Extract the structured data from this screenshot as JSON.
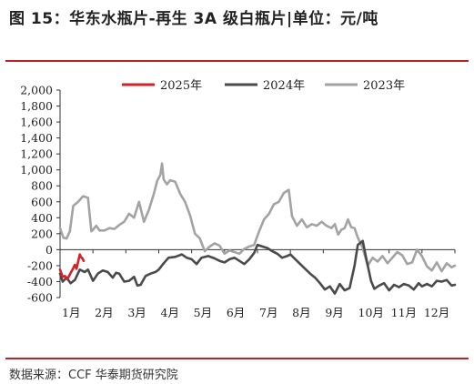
{
  "title": "图 15：华东水瓶片-再生 3A 级白瓶片|单位：元/吨",
  "source": "数据来源：CCF  华泰期货研究院",
  "colors": {
    "rule": "#b8232a",
    "s2025": "#d42128",
    "s2024": "#4a4a4a",
    "s2023": "#a3a3a3"
  },
  "chart_data": {
    "type": "line",
    "x_unit": "month",
    "xlim": [
      1,
      13
    ],
    "x_ticks": [
      1,
      2,
      3,
      4,
      5,
      6,
      7,
      8,
      9,
      10,
      11,
      12
    ],
    "x_tick_labels": [
      "1月",
      "2月",
      "3月",
      "4月",
      "5月",
      "6月",
      "7月",
      "8月",
      "9月",
      "10月",
      "11月",
      "12月"
    ],
    "ylim": [
      -600,
      2000
    ],
    "y_ticks": [
      -600,
      -400,
      -200,
      0,
      200,
      400,
      600,
      800,
      1000,
      1200,
      1400,
      1600,
      1800,
      2000
    ],
    "y_tick_labels": [
      "-600",
      "-400",
      "-200",
      "0",
      "200",
      "400",
      "600",
      "800",
      "1,000",
      "1,200",
      "1,400",
      "1,600",
      "1,800",
      "2,000"
    ],
    "legend_position": "top",
    "series": [
      {
        "name": "2025年",
        "color": "#d42128",
        "x": [
          1.0,
          1.08,
          1.15,
          1.22,
          1.3,
          1.38,
          1.45,
          1.5,
          1.55,
          1.6,
          1.63,
          1.68,
          1.72
        ],
        "y": [
          -250,
          -340,
          -330,
          -370,
          -310,
          -250,
          -190,
          -240,
          -150,
          -60,
          -90,
          -110,
          -140
        ]
      },
      {
        "name": "2024年",
        "color": "#4a4a4a",
        "x": [
          1.0,
          1.08,
          1.2,
          1.32,
          1.45,
          1.6,
          1.75,
          1.85,
          2.0,
          2.15,
          2.3,
          2.45,
          2.6,
          2.7,
          2.8,
          2.95,
          3.1,
          3.25,
          3.35,
          3.45,
          3.6,
          3.75,
          3.9,
          4.0,
          4.15,
          4.3,
          4.5,
          4.7,
          4.85,
          5.0,
          5.15,
          5.3,
          5.5,
          5.7,
          5.85,
          6.0,
          6.15,
          6.3,
          6.45,
          6.6,
          6.75,
          6.9,
          7.0,
          7.15,
          7.3,
          7.45,
          7.6,
          7.75,
          7.9,
          8.0,
          8.15,
          8.3,
          8.45,
          8.6,
          8.75,
          8.9,
          9.05,
          9.2,
          9.35,
          9.5,
          9.65,
          9.8,
          9.95,
          10.05,
          10.2,
          10.3,
          10.45,
          10.55,
          10.7,
          10.85,
          11.0,
          11.15,
          11.3,
          11.45,
          11.6,
          11.75,
          11.9,
          12.0,
          12.15,
          12.3,
          12.45,
          12.6,
          12.75,
          12.9,
          13.0
        ],
        "y": [
          -300,
          -400,
          -350,
          -420,
          -380,
          -250,
          -280,
          -250,
          -390,
          -300,
          -260,
          -280,
          -350,
          -290,
          -300,
          -400,
          -390,
          -340,
          -450,
          -440,
          -330,
          -300,
          -280,
          -250,
          -170,
          -100,
          -90,
          -60,
          -100,
          -120,
          -180,
          -100,
          -80,
          -110,
          -140,
          -160,
          -120,
          -100,
          -140,
          -180,
          -120,
          -40,
          60,
          40,
          20,
          -20,
          -50,
          -100,
          -80,
          -60,
          -120,
          -180,
          -240,
          -300,
          -350,
          -420,
          -500,
          -460,
          -550,
          -430,
          -510,
          -480,
          -200,
          60,
          110,
          -100,
          -390,
          -490,
          -450,
          -420,
          -510,
          -440,
          -470,
          -430,
          -450,
          -500,
          -420,
          -460,
          -430,
          -460,
          -390,
          -400,
          -380,
          -450,
          -440
        ]
      },
      {
        "name": "2023年",
        "color": "#a3a3a3",
        "x": [
          1.0,
          1.1,
          1.2,
          1.3,
          1.4,
          1.55,
          1.7,
          1.85,
          1.95,
          2.0,
          2.1,
          2.2,
          2.35,
          2.5,
          2.65,
          2.8,
          2.95,
          3.1,
          3.25,
          3.4,
          3.55,
          3.7,
          3.85,
          3.95,
          4.05,
          4.1,
          4.15,
          4.25,
          4.35,
          4.5,
          4.65,
          4.8,
          4.95,
          5.1,
          5.25,
          5.4,
          5.55,
          5.7,
          5.85,
          6.0,
          6.15,
          6.3,
          6.45,
          6.6,
          6.75,
          6.9,
          7.05,
          7.2,
          7.35,
          7.5,
          7.65,
          7.8,
          7.95,
          8.05,
          8.2,
          8.35,
          8.5,
          8.65,
          8.8,
          8.95,
          9.1,
          9.25,
          9.35,
          9.45,
          9.55,
          9.65,
          9.75,
          9.85,
          9.95,
          10.05,
          10.2,
          10.35,
          10.5,
          10.65,
          10.8,
          10.95,
          11.1,
          11.25,
          11.4,
          11.55,
          11.7,
          11.85,
          12.0,
          12.15,
          12.3,
          12.45,
          12.6,
          12.75,
          12.9,
          13.0
        ],
        "y": [
          270,
          150,
          140,
          230,
          550,
          600,
          670,
          650,
          230,
          250,
          300,
          240,
          240,
          270,
          260,
          310,
          350,
          450,
          400,
          600,
          350,
          500,
          700,
          860,
          940,
          1080,
          880,
          820,
          870,
          850,
          700,
          600,
          430,
          200,
          140,
          -20,
          40,
          80,
          50,
          -50,
          -10,
          -30,
          -50,
          10,
          40,
          60,
          230,
          380,
          450,
          570,
          600,
          710,
          750,
          420,
          300,
          380,
          280,
          320,
          300,
          350,
          300,
          270,
          320,
          190,
          250,
          270,
          380,
          280,
          270,
          150,
          20,
          -200,
          -100,
          -150,
          -80,
          -170,
          -100,
          -30,
          -70,
          -180,
          -160,
          0,
          -80,
          -210,
          -260,
          -160,
          -270,
          -170,
          -220,
          -200
        ]
      }
    ]
  }
}
